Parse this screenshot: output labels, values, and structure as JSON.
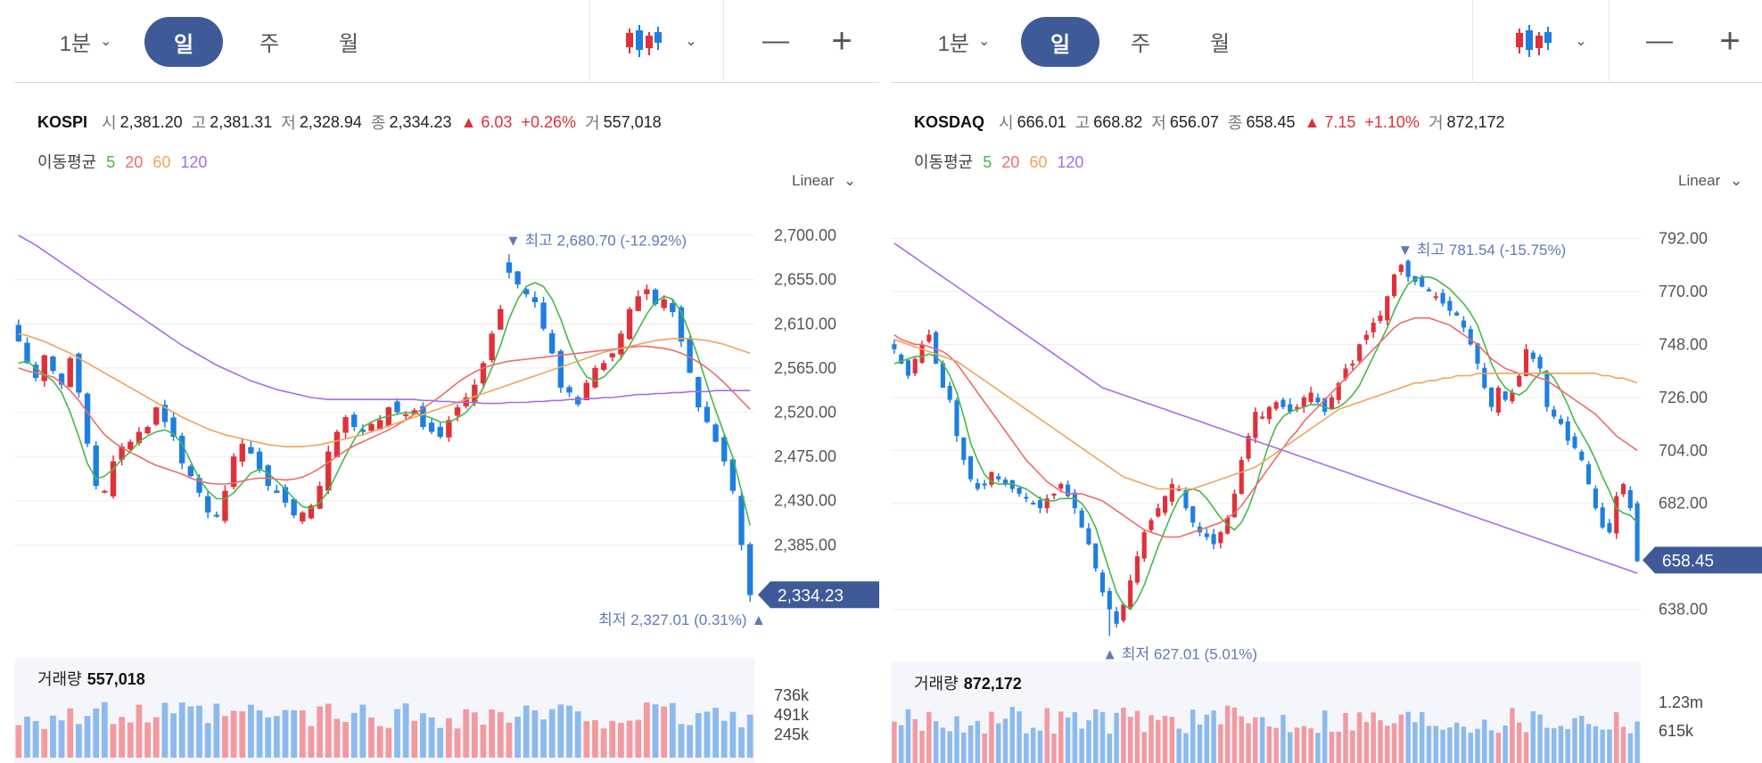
{
  "colors": {
    "accent": "#3f5a99",
    "up": "#e0303a",
    "down": "#1e7fe0",
    "ma5": "#46b84a",
    "ma20": "#ef6a6a",
    "ma60": "#f0a35a",
    "ma120": "#a46ee6",
    "annot": "#5f7ab6",
    "vol_up": "#f29aa0",
    "vol_down": "#8cbaee"
  },
  "panels": [
    {
      "toolbar": {
        "interval": "1분",
        "tabs": [
          "일",
          "주",
          "월"
        ],
        "active_tab": "일",
        "chart_type_icon": "candlestick-icon",
        "zoom_out": "—",
        "zoom_in": "+"
      },
      "info": {
        "name": "KOSPI",
        "open_label": "시",
        "open": "2,381.20",
        "high_label": "고",
        "high": "2,381.31",
        "low_label": "저",
        "low": "2,328.94",
        "close_label": "종",
        "close": "2,334.23",
        "change": "▲ 6.03",
        "change_pct": "+0.26%",
        "volume_label": "거",
        "volume": "557,018"
      },
      "ma": {
        "label": "이동평균",
        "periods": [
          "5",
          "20",
          "60",
          "120"
        ]
      },
      "scale_label": "Linear",
      "annotations": {
        "high_text": "최고",
        "high_value": "2,680.70 (-12.92%)",
        "low_text": "최저",
        "low_value": "2,327.01 (0.31%)"
      },
      "last_price": "2,334.23",
      "volume_label": "거래량",
      "volume_value": "557,018",
      "volume_ticks": [
        "736k",
        "491k",
        "245k"
      ]
    },
    {
      "toolbar": {
        "interval": "1분",
        "tabs": [
          "일",
          "주",
          "월"
        ],
        "active_tab": "일",
        "chart_type_icon": "candlestick-icon",
        "zoom_out": "—",
        "zoom_in": "+"
      },
      "info": {
        "name": "KOSDAQ",
        "open_label": "시",
        "open": "666.01",
        "high_label": "고",
        "high": "668.82",
        "low_label": "저",
        "low": "656.07",
        "close_label": "종",
        "close": "658.45",
        "change": "▲ 7.15",
        "change_pct": "+1.10%",
        "volume_label": "거",
        "volume": "872,172"
      },
      "ma": {
        "label": "이동평균",
        "periods": [
          "5",
          "20",
          "60",
          "120"
        ]
      },
      "scale_label": "Linear",
      "annotations": {
        "high_text": "최고",
        "high_value": "781.54 (-15.75%)",
        "low_text": "최저",
        "low_value": "627.01 (5.01%)"
      },
      "last_price": "658.45",
      "volume_label": "거래량",
      "volume_value": "872,172",
      "volume_ticks": [
        "1.23m",
        "615k"
      ]
    }
  ],
  "chart_data": [
    {
      "type": "candlestick",
      "title": "KOSPI",
      "y_ticks": [
        2700,
        2655,
        2610,
        2565,
        2520,
        2475,
        2430,
        2385
      ],
      "ylim": [
        2310,
        2720
      ],
      "last_close": 2334.23,
      "high_point": 2680.7,
      "low_point": 2327.01,
      "close_series": [
        2592,
        2570,
        2555,
        2578,
        2562,
        2548,
        2575,
        2540,
        2488,
        2445,
        2440,
        2470,
        2485,
        2490,
        2500,
        2505,
        2525,
        2510,
        2495,
        2468,
        2455,
        2438,
        2418,
        2415,
        2440,
        2475,
        2488,
        2478,
        2462,
        2445,
        2438,
        2428,
        2415,
        2418,
        2425,
        2445,
        2480,
        2500,
        2515,
        2505,
        2500,
        2508,
        2512,
        2525,
        2520,
        2518,
        2522,
        2505,
        2500,
        2495,
        2512,
        2525,
        2535,
        2548,
        2570,
        2600,
        2625,
        2662,
        2650,
        2640,
        2632,
        2605,
        2580,
        2545,
        2540,
        2528,
        2550,
        2565,
        2570,
        2580,
        2600,
        2625,
        2638,
        2645,
        2630,
        2635,
        2622,
        2592,
        2560,
        2525,
        2510,
        2490,
        2470,
        2440,
        2385,
        2334
      ],
      "ma_series": {
        "5": [
          2570,
          2572,
          2565,
          2558,
          2552,
          2540,
          2520,
          2495,
          2468,
          2452,
          2455,
          2462,
          2472,
          2480,
          2490,
          2496,
          2500,
          2502,
          2498,
          2488,
          2470,
          2452,
          2440,
          2432,
          2432,
          2438,
          2448,
          2458,
          2462,
          2458,
          2450,
          2442,
          2432,
          2424,
          2422,
          2428,
          2440,
          2458,
          2476,
          2492,
          2505,
          2510,
          2514,
          2516,
          2518,
          2520,
          2519,
          2517,
          2514,
          2510,
          2510,
          2514,
          2520,
          2530,
          2545,
          2565,
          2588,
          2615,
          2635,
          2648,
          2652,
          2648,
          2635,
          2615,
          2590,
          2570,
          2556,
          2552,
          2556,
          2565,
          2575,
          2588,
          2604,
          2620,
          2632,
          2638,
          2635,
          2622,
          2600,
          2575,
          2548,
          2522,
          2498,
          2474,
          2440,
          2405
        ],
        "20": [
          2565,
          2562,
          2560,
          2558,
          2556,
          2550,
          2542,
          2532,
          2520,
          2508,
          2497,
          2490,
          2484,
          2479,
          2475,
          2470,
          2466,
          2463,
          2460,
          2457,
          2453,
          2450,
          2448,
          2447,
          2447,
          2448,
          2450,
          2452,
          2453,
          2453,
          2452,
          2451,
          2452,
          2454,
          2458,
          2463,
          2469,
          2475,
          2481,
          2486,
          2490,
          2494,
          2498,
          2502,
          2507,
          2512,
          2518,
          2524,
          2530,
          2536,
          2543,
          2550,
          2556,
          2561,
          2565,
          2568,
          2570,
          2572,
          2573,
          2574,
          2575,
          2576,
          2577,
          2578,
          2579,
          2580,
          2581,
          2582,
          2583,
          2584,
          2585,
          2586,
          2587,
          2587,
          2586,
          2585,
          2583,
          2580,
          2576,
          2571,
          2565,
          2558,
          2550,
          2541,
          2532,
          2523
        ],
        "60": [
          2600,
          2598,
          2595,
          2592,
          2588,
          2584,
          2580,
          2575,
          2570,
          2565,
          2560,
          2555,
          2550,
          2545,
          2540,
          2535,
          2530,
          2525,
          2520,
          2515,
          2511,
          2507,
          2503,
          2500,
          2497,
          2495,
          2493,
          2491,
          2489,
          2487,
          2486,
          2485,
          2485,
          2485,
          2486,
          2487,
          2489,
          2491,
          2493,
          2495,
          2497,
          2500,
          2503,
          2506,
          2509,
          2512,
          2515,
          2518,
          2521,
          2524,
          2527,
          2530,
          2533,
          2536,
          2539,
          2542,
          2545,
          2548,
          2551,
          2554,
          2557,
          2560,
          2563,
          2566,
          2569,
          2572,
          2575,
          2578,
          2581,
          2583,
          2585,
          2587,
          2589,
          2591,
          2593,
          2594,
          2595,
          2595,
          2595,
          2594,
          2593,
          2591,
          2589,
          2586,
          2583,
          2580
        ],
        "120": [
          2700,
          2695,
          2690,
          2684,
          2678,
          2672,
          2666,
          2660,
          2654,
          2648,
          2642,
          2636,
          2630,
          2624,
          2618,
          2612,
          2606,
          2600,
          2594,
          2588,
          2583,
          2578,
          2573,
          2568,
          2564,
          2560,
          2556,
          2552,
          2549,
          2546,
          2543,
          2541,
          2539,
          2537,
          2535,
          2534,
          2533,
          2533,
          2533,
          2533,
          2533,
          2533,
          2533,
          2533,
          2533,
          2533,
          2533,
          2532,
          2532,
          2531,
          2531,
          2530,
          2530,
          2530,
          2529,
          2529,
          2529,
          2530,
          2530,
          2530,
          2531,
          2531,
          2532,
          2532,
          2533,
          2533,
          2534,
          2534,
          2535,
          2535,
          2536,
          2537,
          2538,
          2538,
          2539,
          2539,
          2540,
          2540,
          2541,
          2541,
          2541,
          2542,
          2542,
          2542,
          2542,
          2542
        ]
      },
      "volume_ylim": [
        0,
        900000
      ]
    },
    {
      "type": "candlestick",
      "title": "KOSDAQ",
      "y_ticks": [
        792,
        770,
        748,
        726,
        704,
        682,
        638
      ],
      "ylim": [
        626,
        797
      ],
      "last_close": 658.45,
      "high_point": 781.54,
      "low_point": 627.01,
      "close_series": [
        746,
        740,
        735,
        742,
        748,
        752,
        740,
        730,
        725,
        710,
        700,
        692,
        688,
        690,
        695,
        692,
        690,
        688,
        686,
        684,
        682,
        680,
        684,
        686,
        690,
        685,
        680,
        672,
        665,
        655,
        645,
        638,
        632,
        640,
        650,
        660,
        670,
        675,
        680,
        685,
        690,
        688,
        680,
        674,
        670,
        668,
        665,
        670,
        676,
        686,
        700,
        710,
        720,
        718,
        722,
        724,
        722,
        720,
        722,
        726,
        728,
        724,
        720,
        726,
        732,
        738,
        740,
        748,
        752,
        757,
        760,
        768,
        777,
        781,
        776,
        774,
        772,
        770,
        768,
        765,
        762,
        760,
        755,
        748,
        740,
        730,
        722,
        730,
        725,
        728,
        735,
        746,
        742,
        738,
        722,
        718,
        715,
        708,
        705,
        700,
        690,
        680,
        672,
        670,
        685,
        690,
        680,
        658
      ],
      "ma_series": {
        "5": [
          740,
          741,
          742,
          743,
          743,
          744,
          743,
          740,
          735,
          728,
          718,
          707,
          700,
          694,
          691,
          690,
          690,
          690,
          689,
          688,
          686,
          684,
          683,
          683,
          684,
          684,
          684,
          682,
          678,
          672,
          663,
          654,
          645,
          640,
          638,
          642,
          648,
          656,
          664,
          671,
          678,
          684,
          687,
          688,
          687,
          684,
          680,
          676,
          673,
          671,
          674,
          680,
          688,
          698,
          707,
          714,
          718,
          720,
          721,
          722,
          723,
          723,
          722,
          721,
          722,
          724,
          727,
          731,
          737,
          743,
          749,
          755,
          762,
          768,
          773,
          775,
          776,
          776,
          775,
          773,
          771,
          768,
          765,
          761,
          756,
          748,
          740,
          734,
          730,
          728,
          727,
          729,
          733,
          736,
          737,
          734,
          729,
          723,
          716,
          711,
          706,
          700,
          693,
          687,
          680,
          678,
          677,
          674
        ],
        "20": [
          752,
          750,
          749,
          748,
          748,
          747,
          746,
          745,
          743,
          740,
          736,
          732,
          728,
          724,
          720,
          716,
          712,
          708,
          704,
          700,
          697,
          694,
          691,
          689,
          687,
          686,
          686,
          686,
          685,
          684,
          683,
          681,
          679,
          677,
          675,
          673,
          671,
          670,
          669,
          668,
          668,
          668,
          669,
          670,
          671,
          672,
          673,
          674,
          676,
          678,
          681,
          685,
          689,
          693,
          697,
          701,
          705,
          709,
          712,
          716,
          719,
          722,
          725,
          728,
          731,
          734,
          737,
          740,
          743,
          746,
          749,
          752,
          755,
          757,
          758,
          759,
          759,
          759,
          758,
          757,
          756,
          754,
          752,
          750,
          748,
          745,
          742,
          740,
          738,
          737,
          736,
          736,
          735,
          734,
          733,
          731,
          729,
          727,
          725,
          723,
          721,
          719,
          716,
          713,
          710,
          708,
          706,
          704
        ],
        "60": [
          750,
          749,
          748,
          747,
          746,
          745,
          744,
          743,
          742,
          741,
          739,
          737,
          735,
          733,
          731,
          729,
          727,
          725,
          723,
          721,
          719,
          717,
          715,
          713,
          711,
          709,
          707,
          705,
          703,
          701,
          699,
          697,
          695,
          693,
          692,
          691,
          690,
          689,
          688,
          688,
          688,
          688,
          688,
          688,
          689,
          690,
          691,
          692,
          693,
          694,
          695,
          696,
          697,
          699,
          701,
          703,
          705,
          707,
          709,
          711,
          713,
          715,
          717,
          719,
          721,
          722,
          723,
          724,
          725,
          726,
          727,
          728,
          729,
          730,
          731,
          732,
          732,
          733,
          733,
          734,
          734,
          735,
          735,
          735,
          736,
          736,
          736,
          736,
          736,
          736,
          736,
          736,
          736,
          736,
          736,
          736,
          736,
          736,
          736,
          736,
          736,
          736,
          735,
          735,
          734,
          734,
          733,
          732
        ],
        "120": [
          790,
          788,
          786,
          784,
          782,
          780,
          778,
          776,
          774,
          772,
          770,
          768,
          766,
          764,
          762,
          760,
          758,
          756,
          754,
          752,
          750,
          748,
          746,
          744,
          742,
          740,
          738,
          736,
          734,
          732,
          730,
          729,
          728,
          727,
          726,
          725,
          724,
          723,
          722,
          721,
          720,
          719,
          718,
          717,
          716,
          715,
          714,
          713,
          712,
          711,
          710,
          709,
          708,
          707,
          706,
          705,
          704,
          703,
          702,
          701,
          700,
          699,
          698,
          697,
          696,
          695,
          694,
          693,
          692,
          691,
          690,
          689,
          688,
          687,
          686,
          685,
          684,
          683,
          682,
          681,
          680,
          679,
          678,
          677,
          676,
          675,
          674,
          673,
          672,
          671,
          670,
          669,
          668,
          667,
          666,
          665,
          664,
          663,
          662,
          661,
          660,
          659,
          658,
          657,
          656,
          655,
          654,
          653
        ]
      },
      "volume_ylim": [
        0,
        1400000
      ]
    }
  ]
}
